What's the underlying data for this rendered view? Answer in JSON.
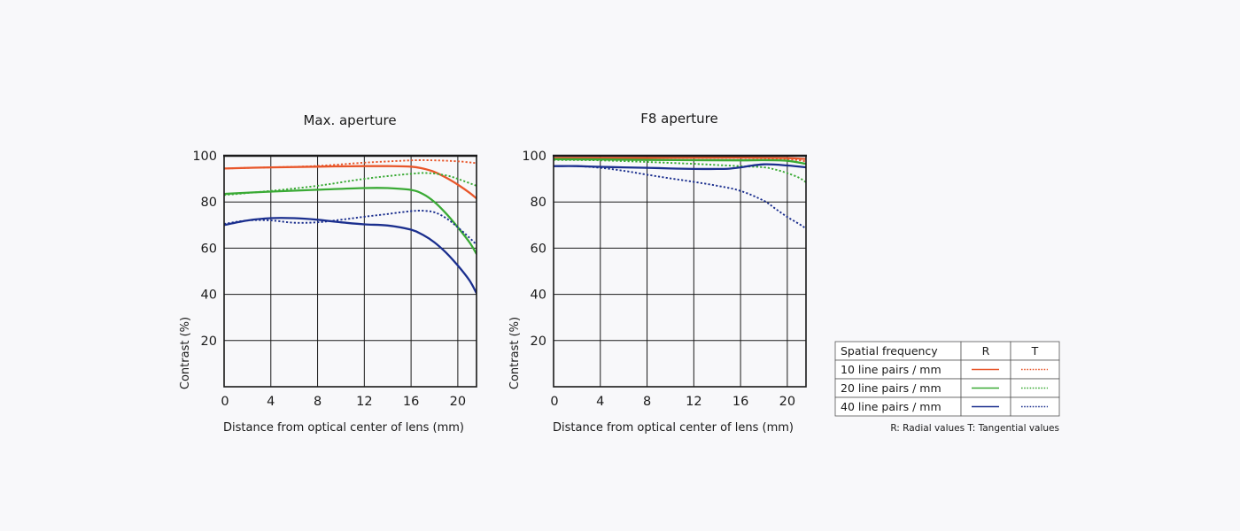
{
  "legend": {
    "header": [
      "Spatial frequency",
      "R",
      "T"
    ],
    "rows": [
      {
        "label": "10 line pairs / mm",
        "color": "#e8562a"
      },
      {
        "label": "20 line pairs / mm",
        "color": "#3aaa35"
      },
      {
        "label": "40 line pairs / mm",
        "color": "#1b2f8e"
      }
    ],
    "note": "R: Radial values  T: Tangential values"
  },
  "chart_data": [
    {
      "type": "line",
      "title": "Max. aperture",
      "xlabel": "Distance from optical center of lens (mm)",
      "ylabel": "Contrast (%)",
      "xlim": [
        0,
        21.6
      ],
      "ylim": [
        0,
        100
      ],
      "xticks": [
        0,
        4,
        8,
        12,
        16,
        20
      ],
      "yticks": [
        20,
        40,
        60,
        80,
        100
      ],
      "grid": true,
      "series": [
        {
          "freq": "10 line pairs / mm",
          "kind": "R",
          "color": "#e8562a",
          "dashed": false,
          "x": [
            0,
            4,
            8,
            12,
            14,
            16,
            17,
            18,
            19,
            20,
            21,
            21.6
          ],
          "y": [
            94.5,
            95,
            95.3,
            95.5,
            95.5,
            95.3,
            94.5,
            93,
            90.5,
            87.5,
            84,
            81.5
          ]
        },
        {
          "freq": "10 line pairs / mm",
          "kind": "T",
          "color": "#e8562a",
          "dashed": true,
          "x": [
            0,
            4,
            8,
            12,
            16,
            18,
            20,
            21.6
          ],
          "y": [
            94.5,
            95,
            95.6,
            97,
            98,
            98,
            97.6,
            96.8
          ]
        },
        {
          "freq": "20 line pairs / mm",
          "kind": "R",
          "color": "#3aaa35",
          "dashed": false,
          "x": [
            0,
            4,
            8,
            12,
            14,
            16,
            17,
            18,
            19,
            20,
            21,
            21.6
          ],
          "y": [
            83.5,
            84.5,
            85.3,
            86,
            86,
            85.2,
            83.5,
            80,
            75,
            69,
            62.5,
            57.5
          ]
        },
        {
          "freq": "20 line pairs / mm",
          "kind": "T",
          "color": "#3aaa35",
          "dashed": true,
          "x": [
            0,
            4,
            8,
            12,
            16,
            17.5,
            19,
            20,
            21.6
          ],
          "y": [
            83,
            84.8,
            87,
            90,
            92.2,
            92.5,
            91.5,
            90,
            87
          ]
        },
        {
          "freq": "40 line pairs / mm",
          "kind": "R",
          "color": "#1b2f8e",
          "dashed": false,
          "x": [
            0,
            2,
            4,
            6,
            8,
            10,
            12,
            14,
            16,
            17,
            18,
            19,
            20,
            21,
            21.6
          ],
          "y": [
            70,
            72,
            73,
            73,
            72.3,
            71.2,
            70.3,
            69.8,
            68,
            65.8,
            62.5,
            58,
            52.5,
            46,
            40.5
          ]
        },
        {
          "freq": "40 line pairs / mm",
          "kind": "T",
          "color": "#1b2f8e",
          "dashed": true,
          "x": [
            0,
            2,
            4,
            6,
            8,
            10,
            12,
            14,
            16,
            17,
            18,
            19,
            20,
            21,
            21.6
          ],
          "y": [
            70.5,
            72,
            72,
            71,
            71.2,
            72.3,
            73.6,
            74.8,
            76,
            76.2,
            75.5,
            73,
            69,
            64.5,
            61.5
          ]
        }
      ]
    },
    {
      "type": "line",
      "title": "F8 aperture",
      "xlabel": "Distance from optical center of lens (mm)",
      "ylabel": "Contrast (%)",
      "xlim": [
        0,
        21.6
      ],
      "ylim": [
        0,
        100
      ],
      "xticks": [
        0,
        4,
        8,
        12,
        16,
        20
      ],
      "yticks": [
        20,
        40,
        60,
        80,
        100
      ],
      "grid": true,
      "series": [
        {
          "freq": "10 line pairs / mm",
          "kind": "R",
          "color": "#e8562a",
          "dashed": false,
          "x": [
            0,
            8,
            16,
            20,
            21.6
          ],
          "y": [
            99,
            99.1,
            99.2,
            99,
            98.6
          ]
        },
        {
          "freq": "10 line pairs / mm",
          "kind": "T",
          "color": "#e8562a",
          "dashed": true,
          "x": [
            0,
            8,
            16,
            20,
            21.6
          ],
          "y": [
            98.9,
            99,
            99,
            98.5,
            97.6
          ]
        },
        {
          "freq": "20 line pairs / mm",
          "kind": "R",
          "color": "#3aaa35",
          "dashed": false,
          "x": [
            0,
            4,
            8,
            12,
            16,
            18,
            20,
            21.6
          ],
          "y": [
            98.5,
            98.4,
            98.2,
            98.1,
            98,
            98.1,
            97.8,
            96.5
          ]
        },
        {
          "freq": "20 line pairs / mm",
          "kind": "T",
          "color": "#3aaa35",
          "dashed": true,
          "x": [
            0,
            4,
            8,
            12,
            14,
            16,
            18,
            19,
            20,
            21,
            21.6
          ],
          "y": [
            98.2,
            98,
            97.3,
            96.5,
            96,
            95.5,
            95,
            94,
            92.5,
            90.5,
            88.5
          ]
        },
        {
          "freq": "40 line pairs / mm",
          "kind": "R",
          "color": "#1b2f8e",
          "dashed": false,
          "x": [
            0,
            2,
            4,
            6,
            8,
            10,
            12,
            14,
            15,
            16,
            18,
            20,
            21.6
          ],
          "y": [
            95.5,
            95.5,
            95.2,
            95,
            94.8,
            94.5,
            94.3,
            94.3,
            94.4,
            95,
            96.3,
            95.8,
            95
          ]
        },
        {
          "freq": "40 line pairs / mm",
          "kind": "T",
          "color": "#1b2f8e",
          "dashed": true,
          "x": [
            0,
            2,
            4,
            6,
            8,
            10,
            12,
            14,
            16,
            18,
            19,
            20,
            21,
            21.6
          ],
          "y": [
            95.5,
            95.5,
            94.8,
            93.5,
            91.8,
            90.2,
            88.7,
            87,
            84.8,
            80.5,
            77,
            73.5,
            70.5,
            68.5
          ]
        }
      ]
    }
  ]
}
